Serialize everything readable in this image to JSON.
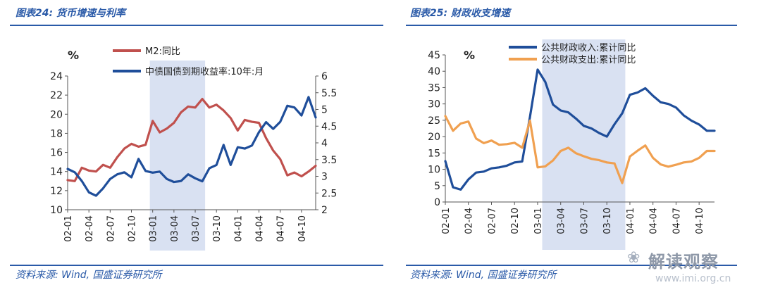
{
  "left_panel": {
    "title": "图表24: 货币增速与利率",
    "source": "资料来源: Wind, 国盛证券研究所"
  },
  "right_panel": {
    "title": "图表25: 财政收支增速",
    "source": "资料来源: Wind, 国盛证券研究所"
  },
  "watermark": {
    "name": "解读观察",
    "url": "www.imi.org.cn"
  },
  "chart_data": [
    {
      "type": "line",
      "title": "",
      "unit_label": "%",
      "x": [
        "02-01",
        "02-02",
        "02-03",
        "02-04",
        "02-05",
        "02-06",
        "02-07",
        "02-08",
        "02-09",
        "02-10",
        "02-11",
        "02-12",
        "03-01",
        "03-02",
        "03-03",
        "03-04",
        "03-05",
        "03-06",
        "03-07",
        "03-08",
        "03-09",
        "03-10",
        "03-11",
        "03-12",
        "04-01",
        "04-02",
        "04-03",
        "04-04",
        "04-05",
        "04-06",
        "04-07",
        "04-08",
        "04-09",
        "04-10",
        "04-11",
        "04-12"
      ],
      "x_tick_labels": [
        "02-01",
        "02-04",
        "02-07",
        "02-10",
        "03-01",
        "03-04",
        "03-07",
        "03-10",
        "04-01",
        "04-04",
        "04-07",
        "04-10"
      ],
      "shaded_range": [
        "03-01",
        "03-08"
      ],
      "left_axis": {
        "ylim": [
          10,
          24
        ],
        "ticks": [
          "10",
          "12",
          "14",
          "16",
          "18",
          "20",
          "22",
          "24"
        ]
      },
      "right_axis": {
        "ylim": [
          2,
          6
        ],
        "ticks": [
          "2",
          "2.5",
          "3",
          "3.5",
          "4",
          "4.5",
          "5",
          "5.5",
          "6"
        ]
      },
      "series": [
        {
          "name": "M2:同比",
          "axis": "left",
          "color": "#c0504d",
          "values": [
            13.1,
            13.0,
            14.4,
            14.1,
            14.0,
            14.7,
            14.4,
            15.5,
            16.4,
            16.9,
            16.6,
            16.8,
            19.3,
            18.1,
            18.5,
            19.1,
            20.2,
            20.8,
            20.7,
            21.6,
            20.7,
            21.0,
            20.4,
            19.6,
            18.3,
            19.4,
            19.2,
            19.1,
            17.5,
            16.2,
            15.3,
            13.6,
            13.9,
            13.5,
            14.0,
            14.6
          ]
        },
        {
          "name": "中债国债到期收益率:10年:月",
          "axis": "right",
          "color": "#1f4e9a",
          "values": [
            3.22,
            3.12,
            2.86,
            2.52,
            2.42,
            2.64,
            2.92,
            3.06,
            3.12,
            2.97,
            3.52,
            3.16,
            3.11,
            3.14,
            2.92,
            2.83,
            2.86,
            3.06,
            2.94,
            2.85,
            3.24,
            3.34,
            3.94,
            3.34,
            3.87,
            3.83,
            3.92,
            4.32,
            4.62,
            4.42,
            4.63,
            5.11,
            5.06,
            4.82,
            5.37,
            4.76
          ]
        }
      ]
    },
    {
      "type": "line",
      "title": "",
      "unit_label": "%",
      "x": [
        "02-01",
        "02-02",
        "02-03",
        "02-04",
        "02-05",
        "02-06",
        "02-07",
        "02-08",
        "02-09",
        "02-10",
        "02-11",
        "02-12",
        "03-01",
        "03-02",
        "03-03",
        "03-04",
        "03-05",
        "03-06",
        "03-07",
        "03-08",
        "03-09",
        "03-10",
        "03-11",
        "03-12",
        "04-01",
        "04-02",
        "04-03",
        "04-04",
        "04-05",
        "04-06",
        "04-07",
        "04-08",
        "04-09",
        "04-10",
        "04-11",
        "04-12"
      ],
      "x_tick_labels": [
        "02-01",
        "02-04",
        "02-07",
        "02-10",
        "03-01",
        "03-04",
        "03-07",
        "03-10",
        "04-01",
        "04-04",
        "04-07",
        "04-10"
      ],
      "shaded_range": [
        "03-02",
        "03-12"
      ],
      "ylim": [
        0,
        45
      ],
      "y_ticks": [
        "0",
        "5",
        "10",
        "15",
        "20",
        "25",
        "30",
        "35",
        "40",
        "45"
      ],
      "series": [
        {
          "name": "公共财政收入:累计同比",
          "color": "#1f4e9a",
          "values": [
            12.5,
            4.5,
            3.8,
            6.9,
            9.0,
            9.3,
            10.3,
            10.6,
            11.1,
            12.1,
            12.4,
            26.0,
            40.5,
            36.7,
            29.8,
            28.0,
            27.4,
            25.5,
            23.3,
            22.5,
            21.1,
            20.0,
            23.8,
            27.1,
            32.8,
            33.5,
            34.8,
            32.5,
            30.5,
            30.0,
            28.9,
            26.5,
            24.9,
            23.7,
            21.8,
            21.8
          ]
        },
        {
          "name": "公共财政支出:累计同比",
          "color": "#f0a050",
          "values": [
            26.3,
            21.8,
            24.0,
            24.6,
            19.4,
            18.0,
            18.8,
            17.5,
            17.7,
            18.1,
            16.6,
            24.9,
            10.6,
            10.9,
            12.7,
            15.6,
            16.6,
            14.9,
            14.0,
            13.2,
            12.8,
            12.1,
            11.8,
            5.8,
            13.9,
            15.7,
            17.3,
            13.5,
            11.5,
            10.8,
            11.4,
            12.1,
            12.4,
            13.5,
            15.6,
            15.6
          ]
        }
      ]
    }
  ]
}
